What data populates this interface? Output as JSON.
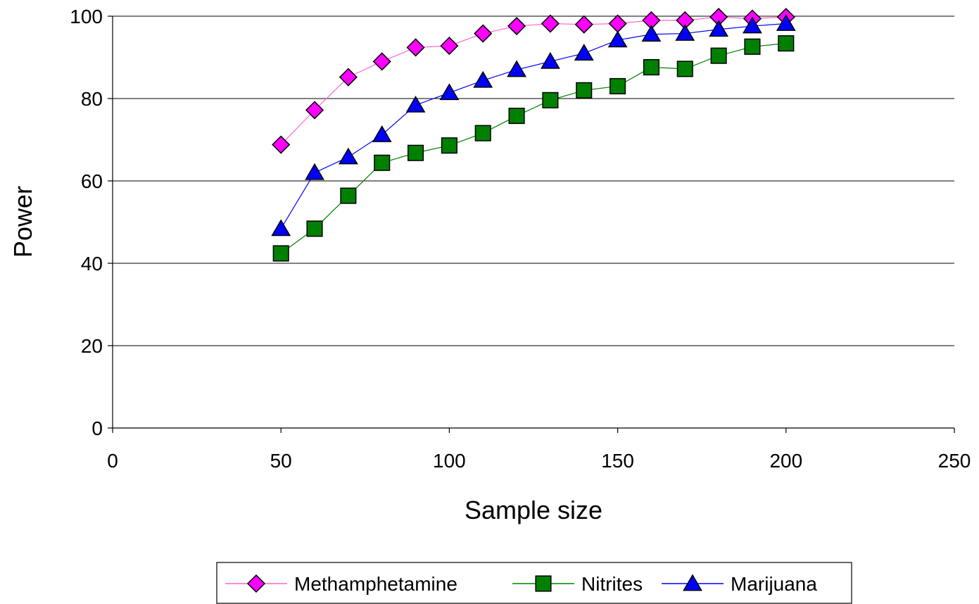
{
  "chart_data": {
    "type": "line",
    "title": "",
    "xlabel": "Sample size",
    "ylabel": "Power",
    "xlim": [
      0,
      250
    ],
    "ylim": [
      0,
      100
    ],
    "xticks": [
      0,
      50,
      100,
      150,
      200,
      250
    ],
    "yticks": [
      0,
      20,
      40,
      60,
      80,
      100
    ],
    "xtick_labels": [
      "0",
      "50",
      "100",
      "150",
      "200",
      "250"
    ],
    "ytick_labels": [
      "0",
      "20",
      "40",
      "60",
      "80",
      "100"
    ],
    "grid": "horizontal major gridlines",
    "legend_position": "bottom",
    "x": [
      50,
      60,
      70,
      80,
      90,
      100,
      110,
      120,
      130,
      140,
      150,
      160,
      170,
      180,
      190,
      200
    ],
    "series": [
      {
        "name": "Methamphetamine",
        "marker": "diamond",
        "line_color": "#ff66cc",
        "marker_fill": "#ff00ff",
        "values": [
          68.8,
          77.2,
          85.2,
          89,
          92.4,
          92.8,
          95.8,
          97.6,
          98.2,
          98,
          98.2,
          99,
          99,
          99.8,
          99.4,
          99.8
        ]
      },
      {
        "name": "Nitrites",
        "marker": "square",
        "line_color": "#008000",
        "marker_fill": "#008000",
        "values": [
          42.4,
          48.4,
          56.4,
          64.4,
          66.8,
          68.6,
          71.6,
          75.8,
          79.6,
          82,
          83,
          87.6,
          87.2,
          90.4,
          92.6,
          93.4
        ]
      },
      {
        "name": "Marijuana",
        "marker": "triangle",
        "line_color": "#0000ff",
        "marker_fill": "#0000ff",
        "values": [
          48.4,
          62,
          65.8,
          71.2,
          78.4,
          81.4,
          84.4,
          87,
          89,
          91,
          94.2,
          95.6,
          95.8,
          96.8,
          97.6,
          98.2
        ]
      }
    ]
  }
}
